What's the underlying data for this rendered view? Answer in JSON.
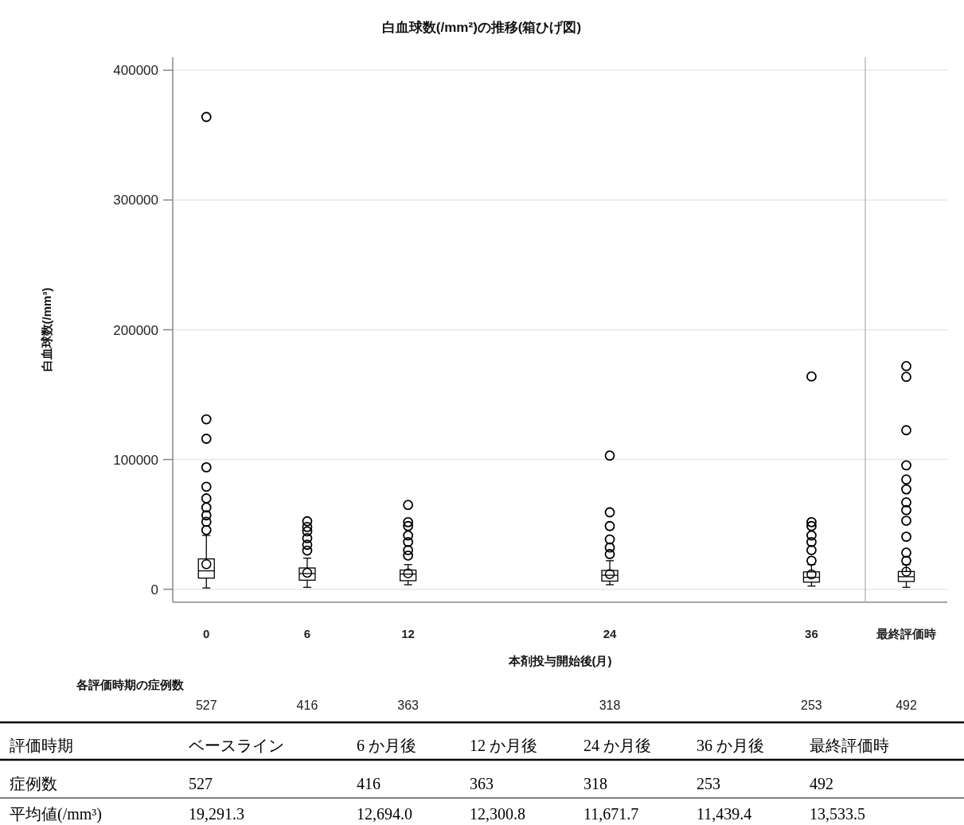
{
  "chart_data": [
    {
      "type": "box",
      "title": "白血球数(/mm²)の推移(箱ひげ図)",
      "xlabel": "本剤投与開始後(月)",
      "ylabel": "白血球数(/mm³)",
      "x": [
        0,
        6,
        12,
        24,
        36
      ],
      "xlim": [
        -2,
        39.2
      ],
      "xticks": [
        0,
        6,
        12,
        24,
        36
      ],
      "ylim": [
        -10000,
        410000
      ],
      "yticks": [
        0,
        100000,
        200000,
        300000,
        400000
      ],
      "grid": "y",
      "tick_labels": "xy",
      "boxes": [
        {
          "low": 1000,
          "q1": 8600,
          "median": 14200,
          "q3": 23400,
          "high": 41500,
          "mean": 19291.3,
          "outliers": [
            364000,
            131000,
            116000,
            94000,
            79000,
            70000,
            63000,
            57000,
            52000,
            45600
          ]
        },
        {
          "low": 1500,
          "q1": 7000,
          "median": 12100,
          "q3": 16400,
          "high": 24000,
          "mean": 12694.0,
          "outliers": [
            52400,
            48000,
            44600,
            39400,
            34300,
            29800
          ]
        },
        {
          "low": 3500,
          "q1": 6600,
          "median": 11700,
          "q3": 14800,
          "high": 19000,
          "mean": 12300.8,
          "outliers": [
            65000,
            51700,
            48700,
            41500,
            36400,
            30200,
            26000
          ]
        },
        {
          "low": 3500,
          "q1": 6300,
          "median": 10800,
          "q3": 14500,
          "high": 22000,
          "mean": 11671.7,
          "outliers": [
            103000,
            59300,
            48700,
            38400,
            32200,
            27100
          ]
        },
        {
          "low": 2500,
          "q1": 5500,
          "median": 9200,
          "q3": 13400,
          "high": 19000,
          "mean": 11439.4,
          "outliers": [
            164000,
            51700,
            48700,
            41500,
            36400,
            30200,
            22000
          ]
        }
      ],
      "annotations": [
        "各評価時期の症例数",
        "527",
        "416",
        "363",
        "318",
        "253"
      ]
    },
    {
      "type": "box",
      "categories": [
        "最終評価時"
      ],
      "ylim": [
        -10000,
        410000
      ],
      "yticks": [
        0,
        100000,
        200000,
        300000,
        400000
      ],
      "grid": "y",
      "tick_labels": "x",
      "boxes": [
        {
          "low": 1500,
          "q1": 6000,
          "median": 9700,
          "q3": 13700,
          "high": 19000,
          "mean": 13533.5,
          "outliers": [
            172000,
            163700,
            122600,
            95500,
            84600,
            77000,
            67000,
            61000,
            52800,
            40500,
            28200,
            22000
          ]
        }
      ],
      "annotations": [
        "492"
      ]
    },
    {
      "type": "other",
      "annotations": [
        "評価時期",
        "ベースライン",
        "6 か月後",
        "12 か月後",
        "24 か月後",
        "36 か月後",
        "最終評価時",
        "症例数",
        "527",
        "416",
        "363",
        "318",
        "253",
        "492",
        "平均値(/mm³)",
        "19,291.3",
        "12,694.0",
        "12,300.8",
        "11,671.7",
        "11,439.4",
        "13,533.5"
      ]
    }
  ]
}
